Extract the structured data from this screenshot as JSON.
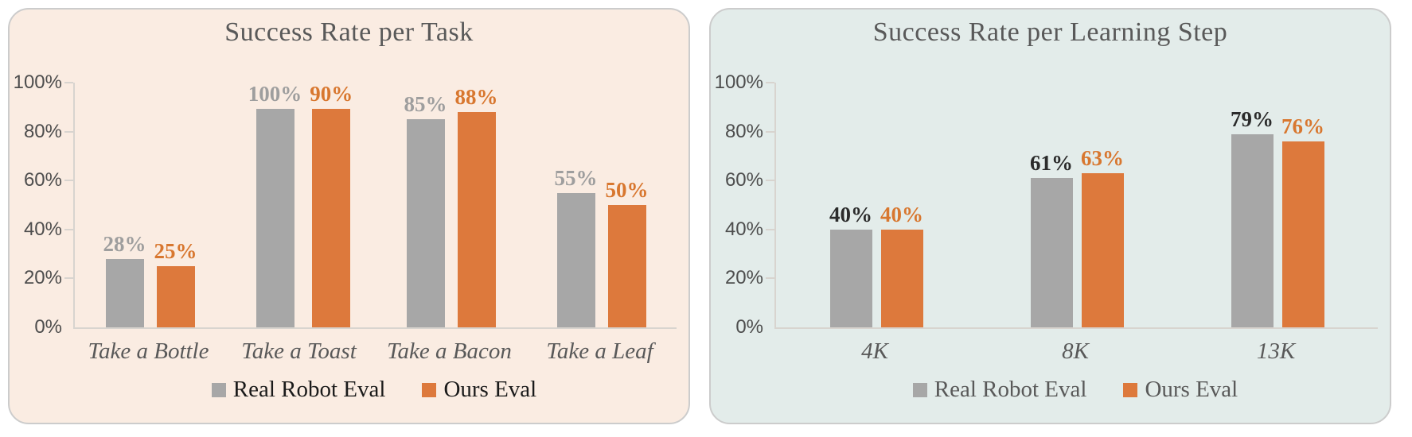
{
  "page": {
    "background": "#ffffff",
    "border_color": "#cccccc"
  },
  "chart_data": [
    {
      "type": "bar",
      "title": "Success Rate per Task",
      "categories": [
        "Take a Bottle",
        "Take a Toast",
        "Take a Bacon",
        "Take a Leaf"
      ],
      "series": [
        {
          "name": "Real Robot Eval",
          "color": "#a7a7a7",
          "label_color": "#9e9e9e",
          "values": [
            28,
            100,
            85,
            55
          ]
        },
        {
          "name": "Ours Eval",
          "color": "#dd793c",
          "label_color": "#d8772f",
          "values": [
            25,
            90,
            88,
            50
          ]
        }
      ],
      "xlabel": "",
      "ylabel": "",
      "ylim": [
        0,
        100
      ],
      "yticks": [
        "0%",
        "20%",
        "40%",
        "60%",
        "80%",
        "100%"
      ],
      "grid": false,
      "legend_position": "bottom",
      "panel_bg": "#faece2",
      "legend_text_color": "#1a1a1a",
      "data_labels": [
        "28%",
        "100%",
        "85%",
        "55%",
        "25%",
        "90%",
        "88%",
        "50%"
      ]
    },
    {
      "type": "bar",
      "title": "Success Rate per Learning Step",
      "categories": [
        "4K",
        "8K",
        "13K"
      ],
      "series": [
        {
          "name": "Real Robot Eval",
          "color": "#a7a7a7",
          "label_color": "#2b2b2b",
          "values": [
            40,
            61,
            79
          ]
        },
        {
          "name": "Ours Eval",
          "color": "#dd793c",
          "label_color": "#d8772f",
          "values": [
            40,
            63,
            76
          ]
        }
      ],
      "xlabel": "",
      "ylabel": "",
      "ylim": [
        0,
        100
      ],
      "yticks": [
        "0%",
        "20%",
        "40%",
        "60%",
        "80%",
        "100%"
      ],
      "grid": false,
      "legend_position": "bottom",
      "panel_bg": "#e3eceа",
      "legend_text_color": "#595959",
      "data_labels": [
        "40%",
        "61%",
        "79%",
        "40%",
        "63%",
        "76%"
      ]
    }
  ],
  "panels": [
    {
      "background": "#faece2"
    },
    {
      "background": "#e3ecea"
    }
  ]
}
